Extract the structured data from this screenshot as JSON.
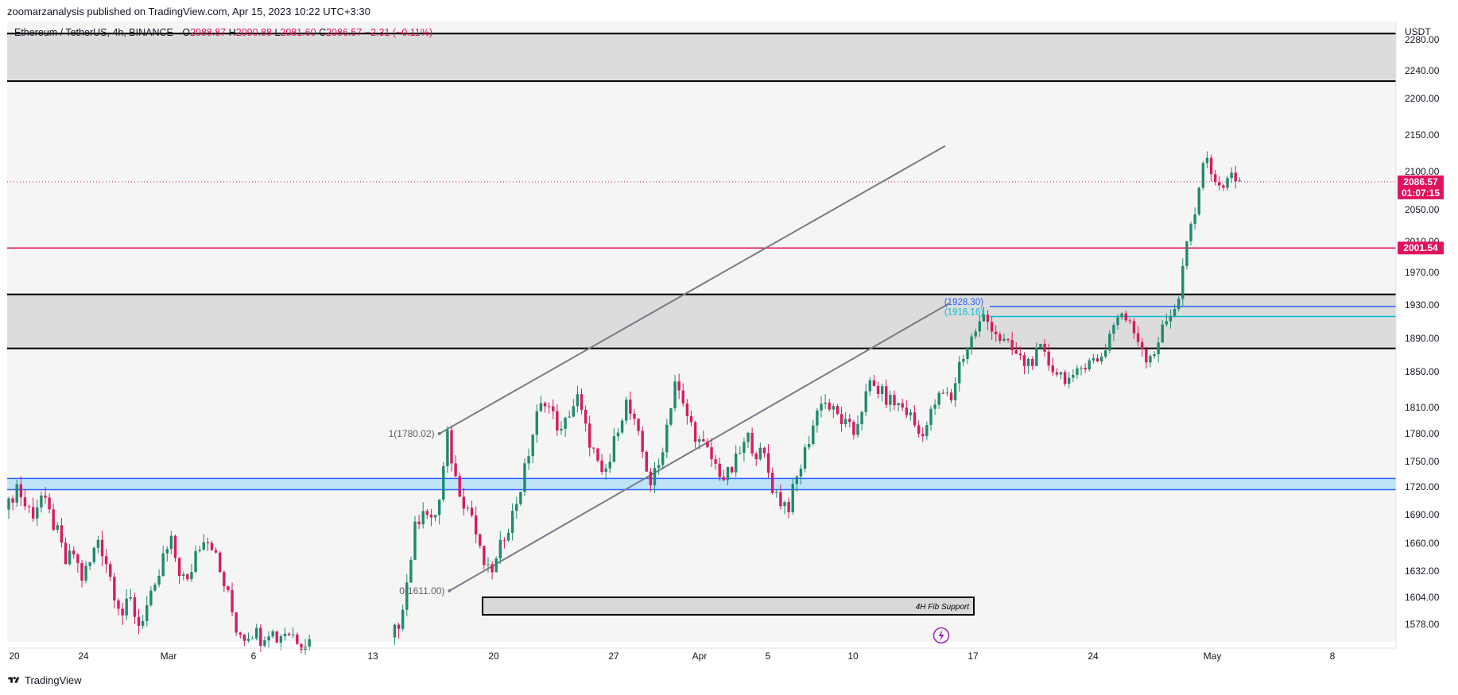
{
  "header": {
    "publisher_line": "zoomarzanalysis published on TradingView.com, Apr 15, 2023 10:22 UTC+3:30"
  },
  "legend": {
    "symbol": "Ethereum / TetherUS, 4h, BINANCE",
    "o_label": "O",
    "o_value": "2088.87",
    "h_label": "H",
    "h_value": "2090.88",
    "l_label": "L",
    "l_value": "2081.60",
    "c_label": "C",
    "c_value": "2086.57",
    "change": "−2.31 (−0.11%)"
  },
  "footer": {
    "brand": "TradingView"
  },
  "colors": {
    "up": "#1f8a70",
    "down": "#d81b60",
    "accent": "#e0115f",
    "zone_gray": "#dcdcdc",
    "zone_blue": "#bfe3f7",
    "channel": "#787b86",
    "fib_blue": "#2962ff",
    "fib_cyan": "#00bcd4"
  },
  "icons": {
    "footer_logo": "tradingview-logo-icon",
    "replay": "lightning-icon"
  },
  "chart_data": {
    "type": "candlestick",
    "symbol": "Ethereum / TetherUS",
    "timeframe": "4h",
    "exchange": "BINANCE",
    "currency_label": "USDT",
    "ylim": [
      1555,
      2288
    ],
    "y_ticks": [
      "2280.00",
      "2240.00",
      "2200.00",
      "2150.00",
      "2100.00",
      "2050.00",
      "2010.00",
      "1970.00",
      "1930.00",
      "1890.00",
      "1850.00",
      "1810.00",
      "1780.00",
      "1750.00",
      "1720.00",
      "1690.00",
      "1660.00",
      "1632.00",
      "1604.00",
      "1578.00"
    ],
    "x_ticks": [
      "20",
      "24",
      "Mar",
      "6",
      "13",
      "20",
      "27",
      "Apr",
      "5",
      "10",
      "17",
      "24",
      "May",
      "8"
    ],
    "price_close": {
      "value": "2086.57",
      "countdown": "01:07:15"
    },
    "horizontal_levels": [
      {
        "price": 2001.54,
        "label": "2001.54"
      }
    ],
    "zones": [
      {
        "name": "upper-supply-zone",
        "top": 2288,
        "bottom": 2225
      },
      {
        "name": "mid-supply-zone",
        "top": 1943,
        "bottom": 1878
      },
      {
        "name": "blue-support-zone",
        "top": 1730,
        "bottom": 1717
      }
    ],
    "channel": {
      "upper": [
        [
          "Mar 14",
          1780
        ],
        [
          "Apr 21",
          2135
        ]
      ],
      "lower": [
        [
          "Mar 15",
          1611
        ],
        [
          "Apr 22",
          1932
        ]
      ]
    },
    "fib_labels": [
      {
        "text": "1(1780.02)",
        "price": 1780.02
      },
      {
        "text": "0(1611.00)",
        "price": 1611.0
      }
    ],
    "fib_levels": [
      {
        "text": "(1928.30)",
        "price": 1928.3
      },
      {
        "text": "(1916.16)",
        "price": 1916.16
      }
    ],
    "annotation": "4H Fib Support",
    "candles_path": [
      [
        0,
        1700
      ],
      [
        2,
        1722
      ],
      [
        4,
        1700
      ],
      [
        6,
        1692
      ],
      [
        8,
        1710
      ],
      [
        10,
        1690
      ],
      [
        12,
        1670
      ],
      [
        14,
        1640
      ],
      [
        16,
        1650
      ],
      [
        18,
        1625
      ],
      [
        20,
        1640
      ],
      [
        22,
        1665
      ],
      [
        24,
        1642
      ],
      [
        26,
        1610
      ],
      [
        28,
        1588
      ],
      [
        30,
        1600
      ],
      [
        32,
        1578
      ],
      [
        34,
        1595
      ],
      [
        36,
        1610
      ],
      [
        38,
        1645
      ],
      [
        40,
        1660
      ],
      [
        42,
        1632
      ],
      [
        44,
        1618
      ],
      [
        46,
        1652
      ],
      [
        48,
        1668
      ],
      [
        50,
        1660
      ],
      [
        52,
        1630
      ],
      [
        54,
        1605
      ],
      [
        56,
        1575
      ],
      [
        58,
        1568
      ],
      [
        60,
        1572
      ],
      [
        62,
        1566
      ],
      [
        64,
        1574
      ],
      [
        66,
        1565
      ],
      [
        68,
        1572
      ],
      [
        70,
        1568
      ],
      [
        72,
        1562
      ],
      [
        74,
        1562
      ],
      [
        94,
        1560
      ],
      [
        96,
        1580
      ],
      [
        98,
        1620
      ],
      [
        100,
        1675
      ],
      [
        102,
        1700
      ],
      [
        104,
        1680
      ],
      [
        106,
        1705
      ],
      [
        108,
        1776
      ],
      [
        110,
        1730
      ],
      [
        112,
        1705
      ],
      [
        114,
        1690
      ],
      [
        116,
        1650
      ],
      [
        118,
        1630
      ],
      [
        120,
        1640
      ],
      [
        122,
        1670
      ],
      [
        124,
        1690
      ],
      [
        126,
        1720
      ],
      [
        128,
        1760
      ],
      [
        130,
        1800
      ],
      [
        132,
        1820
      ],
      [
        134,
        1800
      ],
      [
        136,
        1780
      ],
      [
        138,
        1805
      ],
      [
        140,
        1820
      ],
      [
        142,
        1785
      ],
      [
        144,
        1760
      ],
      [
        146,
        1730
      ],
      [
        148,
        1750
      ],
      [
        150,
        1790
      ],
      [
        152,
        1815
      ],
      [
        154,
        1790
      ],
      [
        156,
        1760
      ],
      [
        158,
        1725
      ],
      [
        160,
        1745
      ],
      [
        162,
        1790
      ],
      [
        164,
        1840
      ],
      [
        166,
        1810
      ],
      [
        168,
        1790
      ],
      [
        170,
        1770
      ],
      [
        172,
        1760
      ],
      [
        174,
        1745
      ],
      [
        176,
        1730
      ],
      [
        178,
        1740
      ],
      [
        180,
        1760
      ],
      [
        182,
        1775
      ],
      [
        184,
        1760
      ],
      [
        186,
        1755
      ],
      [
        188,
        1720
      ],
      [
        190,
        1705
      ],
      [
        192,
        1700
      ],
      [
        194,
        1730
      ],
      [
        196,
        1760
      ],
      [
        198,
        1790
      ],
      [
        200,
        1820
      ],
      [
        202,
        1810
      ],
      [
        204,
        1800
      ],
      [
        206,
        1790
      ],
      [
        208,
        1780
      ],
      [
        210,
        1810
      ],
      [
        212,
        1835
      ],
      [
        214,
        1830
      ],
      [
        216,
        1820
      ],
      [
        218,
        1815
      ],
      [
        220,
        1810
      ],
      [
        222,
        1800
      ],
      [
        224,
        1780
      ],
      [
        226,
        1790
      ],
      [
        228,
        1815
      ],
      [
        230,
        1825
      ],
      [
        232,
        1820
      ],
      [
        234,
        1860
      ],
      [
        236,
        1880
      ],
      [
        238,
        1900
      ],
      [
        240,
        1915
      ],
      [
        242,
        1905
      ],
      [
        244,
        1890
      ],
      [
        246,
        1880
      ],
      [
        248,
        1870
      ],
      [
        250,
        1860
      ],
      [
        252,
        1865
      ],
      [
        254,
        1875
      ],
      [
        256,
        1860
      ],
      [
        258,
        1850
      ],
      [
        260,
        1845
      ],
      [
        262,
        1838
      ],
      [
        264,
        1855
      ],
      [
        266,
        1868
      ],
      [
        268,
        1860
      ],
      [
        270,
        1880
      ],
      [
        272,
        1910
      ],
      [
        274,
        1920
      ],
      [
        276,
        1905
      ],
      [
        278,
        1890
      ],
      [
        280,
        1868
      ],
      [
        282,
        1875
      ],
      [
        284,
        1900
      ],
      [
        286,
        1920
      ],
      [
        288,
        1940
      ],
      [
        290,
        2010
      ],
      [
        292,
        2040
      ],
      [
        294,
        2115
      ],
      [
        296,
        2105
      ],
      [
        298,
        2075
      ],
      [
        300,
        2095
      ],
      [
        302,
        2088
      ],
      [
        303,
        2087
      ]
    ]
  }
}
